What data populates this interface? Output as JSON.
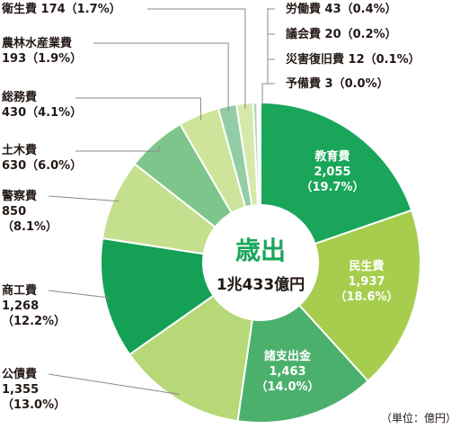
{
  "chart_data": {
    "type": "pie",
    "style": "donut",
    "center_title": "歳出",
    "center_total": "1兆433億円",
    "unit_note": "（単位：億円）",
    "colors": {
      "center_title": "#1aa65a",
      "leader_line": "#888888"
    },
    "slices": [
      {
        "name": "教育費",
        "value": 2055,
        "value_label": "2,055",
        "percent": "（19.7%）",
        "color": "#1aa65a"
      },
      {
        "name": "民生費",
        "value": 1937,
        "value_label": "1,937",
        "percent": "（18.6%）",
        "color": "#a6cd4e"
      },
      {
        "name": "諸支出金",
        "value": 1463,
        "value_label": "1,463",
        "percent": "（14.0%）",
        "color": "#4cb06d"
      },
      {
        "name": "公債費",
        "value": 1355,
        "value_label": "1,355",
        "percent": "（13.0%）",
        "color": "#b6d877"
      },
      {
        "name": "商工費",
        "value": 1268,
        "value_label": "1,268",
        "percent": "（12.2%）",
        "color": "#14a055"
      },
      {
        "name": "警察費",
        "value": 850,
        "value_label": "850",
        "percent": "（8.1%）",
        "color": "#c4df8d"
      },
      {
        "name": "土木費",
        "value": 630,
        "value_label": "630",
        "percent": "（6.0%）",
        "color": "#7ec58c"
      },
      {
        "name": "総務費",
        "value": 430,
        "value_label": "430",
        "percent": "（4.1%）",
        "color": "#cde49a"
      },
      {
        "name": "農林水産業費",
        "value": 193,
        "value_label": "193",
        "percent": "（1.9%）",
        "color": "#92cda5"
      },
      {
        "name": "衛生費",
        "value": 174,
        "value_label": "174",
        "percent": "（1.7%）",
        "color": "#d6e9aa"
      },
      {
        "name": "労働費",
        "value": 43,
        "value_label": "43",
        "percent": "（0.4%）",
        "color": "#a8d8b4"
      },
      {
        "name": "議会費",
        "value": 20,
        "value_label": "20",
        "percent": "（0.2%）",
        "color": "#dcedb5"
      },
      {
        "name": "災害復旧費",
        "value": 12,
        "value_label": "12",
        "percent": "（0.1%）",
        "color": "#bfe3c6"
      },
      {
        "name": "予備費",
        "value": 3,
        "value_label": "3",
        "percent": "（0.0%）",
        "color": "#e2f0c0"
      }
    ]
  }
}
